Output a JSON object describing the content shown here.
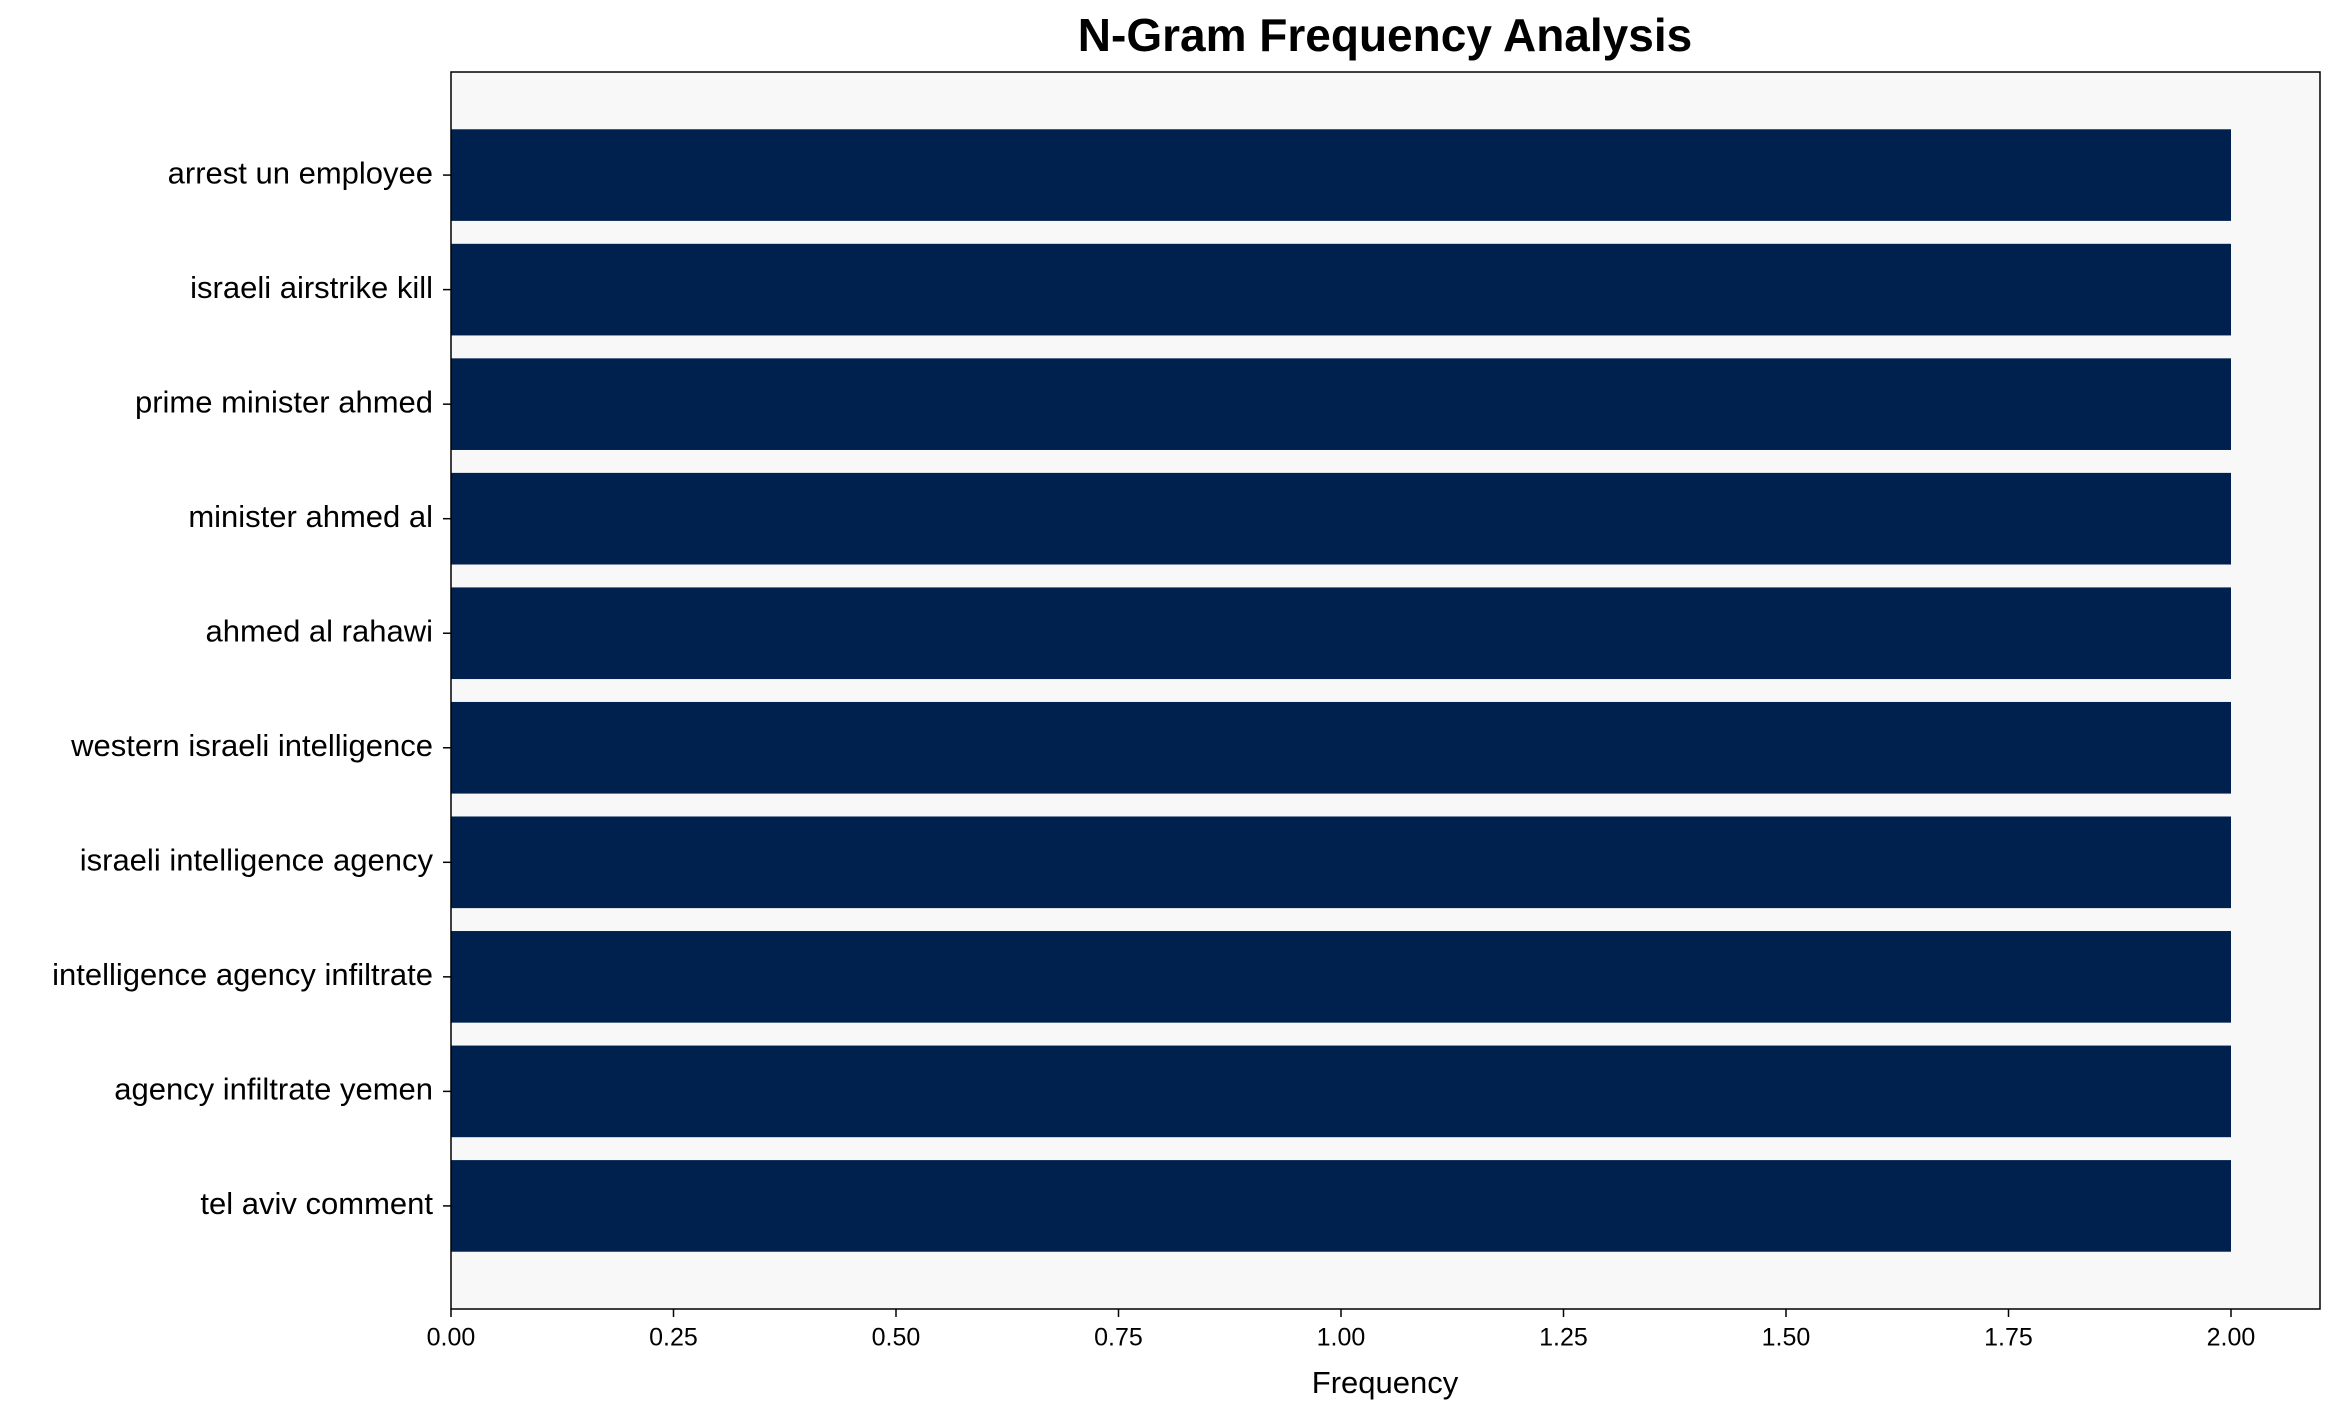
{
  "chart_data": {
    "type": "barh",
    "title": "N-Gram Frequency Analysis",
    "x_label": "Frequency",
    "categories": [
      "arrest un employee",
      "israeli airstrike kill",
      "prime minister ahmed",
      "minister ahmed al",
      "ahmed al rahawi",
      "western israeli intelligence",
      "israeli intelligence agency",
      "intelligence agency infiltrate",
      "agency infiltrate yemen",
      "tel aviv comment"
    ],
    "values": [
      2,
      2,
      2,
      2,
      2,
      2,
      2,
      2,
      2,
      2
    ],
    "color": "#00214e",
    "xlim": [
      0,
      2.1
    ],
    "xticks": [
      {
        "value": 0,
        "label": "0.00"
      },
      {
        "value": 0.25,
        "label": "0.25"
      },
      {
        "value": 0.5,
        "label": "0.50"
      },
      {
        "value": 0.75,
        "label": "0.75"
      },
      {
        "value": 1,
        "label": "1.00"
      },
      {
        "value": 1.25,
        "label": "1.25"
      },
      {
        "value": 1.5,
        "label": "1.50"
      },
      {
        "value": 1.75,
        "label": "1.75"
      },
      {
        "value": 2,
        "label": "2.00"
      }
    ],
    "grid": false
  }
}
